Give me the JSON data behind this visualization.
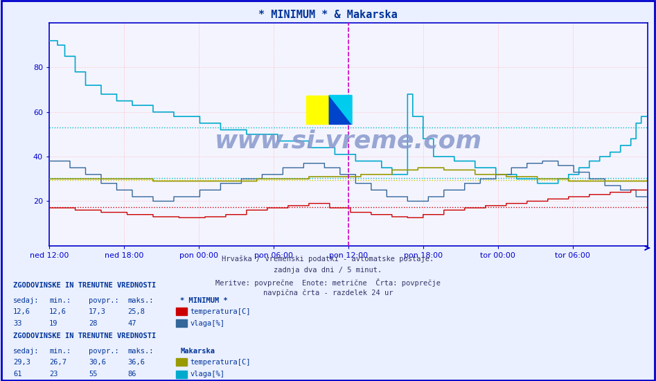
{
  "title": "* MINIMUM * & Makarska",
  "title_color": "#003399",
  "bg_color": "#eaf0ff",
  "plot_bg_color": "#f4f4ff",
  "ylim": [
    0,
    100
  ],
  "yticks": [
    20,
    40,
    60,
    80
  ],
  "xlabel_labels": [
    "ned 12:00",
    "ned 18:00",
    "pon 00:00",
    "pon 06:00",
    "pon 12:00",
    "pon 18:00",
    "tor 00:00",
    "tor 06:00"
  ],
  "n_points": 576,
  "subtitle_lines": [
    "Hrvaška / vremenski podatki - avtomatske postaje.",
    "zadnja dva dni / 5 minut.",
    "Meritve: povprečne  Enote: metrične  Črta: povprečje",
    "navpična črta - razdelek 24 ur"
  ],
  "section1_title": "ZGODOVINSKE IN TRENUTNE VREDNOSTI",
  "section1_station": "* MINIMUM *",
  "section1_rows": [
    {
      "sedaj": "12,6",
      "min": "12,6",
      "povpr": "17,3",
      "maks": "25,8",
      "label": "temperatura[C]",
      "color": "#cc0000"
    },
    {
      "sedaj": "33",
      "min": "19",
      "povpr": "28",
      "maks": "47",
      "label": "vlaga[%]",
      "color": "#336699"
    }
  ],
  "section2_title": "ZGODOVINSKE IN TRENUTNE VREDNOSTI",
  "section2_station": "Makarska",
  "section2_rows": [
    {
      "sedaj": "29,3",
      "min": "26,7",
      "povpr": "30,6",
      "maks": "36,6",
      "label": "temperatura[C]",
      "color": "#999900"
    },
    {
      "sedaj": "61",
      "min": "23",
      "povpr": "55",
      "maks": "86",
      "label": "vlaga[%]",
      "color": "#00aacc"
    }
  ],
  "hlines": [
    {
      "y": 53.0,
      "color": "#00bbbb",
      "lw": 1.0,
      "ls": "dotted"
    },
    {
      "y": 30.5,
      "color": "#00bbbb",
      "lw": 1.0,
      "ls": "dotted"
    },
    {
      "y": 29.5,
      "color": "#cccc00",
      "lw": 1.0,
      "ls": "dotted"
    },
    {
      "y": 17.3,
      "color": "#cc0000",
      "lw": 1.0,
      "ls": "dotted"
    }
  ],
  "vgrid_color": "#ffaaaa",
  "hgrid_color": "#ffaaaa",
  "axis_color": "#0000cc",
  "watermark": "www.si-vreme.com",
  "watermark_color": "#8899cc"
}
